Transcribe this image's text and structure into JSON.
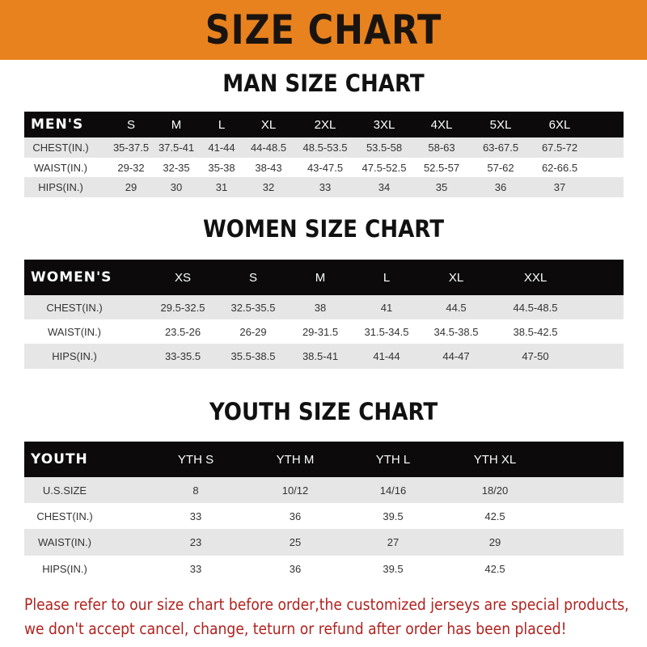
{
  "banner": {
    "title": "SIZE CHART",
    "color": "#E8821E"
  },
  "tables": [
    {
      "title": "MAN SIZE CHART",
      "headers": [
        "MEN'S",
        "S",
        "M",
        "L",
        "XL",
        "2XL",
        "3XL",
        "4XL",
        "5XL",
        "6XL"
      ],
      "rows": [
        [
          "CHEST(IN.)",
          "35-37.5",
          "37.5-41",
          "41-44",
          "44-48.5",
          "48.5-53.5",
          "53.5-58",
          "58-63",
          "63-67.5",
          "67.5-72"
        ],
        [
          "WAISТ(IN.)",
          "29-32",
          "32-35",
          "35-38",
          "38-43",
          "43-47.5",
          "47.5-52.5",
          "52.5-57",
          "57-62",
          "62-66.5"
        ],
        [
          "HIPS(IN.)",
          "29",
          "30",
          "31",
          "32",
          "33",
          "34",
          "35",
          "36",
          "37"
        ]
      ]
    },
    {
      "title": "WOMEN SIZE CHART",
      "headers": [
        "WOMEN'S",
        "XS",
        "S",
        "M",
        "L",
        "XL",
        "XXL"
      ],
      "rows": [
        [
          "CHEST(IN.)",
          "29.5-32.5",
          "32.5-35.5",
          "38",
          "41",
          "44.5",
          "44.5-48.5"
        ],
        [
          "WAIST(IN.)",
          "23.5-26",
          "26-29",
          "29-31.5",
          "31.5-34.5",
          "34.5-38.5",
          "38.5-42.5"
        ],
        [
          "HIPS(IN.)",
          "33-35.5",
          "35.5-38.5",
          "38.5-41",
          "41-44",
          "44-47",
          "47-50"
        ]
      ]
    },
    {
      "title": "YOUTH SIZE CHART",
      "headers": [
        "YOUTH",
        "YTH S",
        "YTH M",
        "YTH L",
        "YTH XL"
      ],
      "rows": [
        [
          "U.S.SIZE",
          "8",
          "10/12",
          "14/16",
          "18/20"
        ],
        [
          "CHEST(IN.)",
          "33",
          "36",
          "39.5",
          "42.5"
        ],
        [
          "WAIST(IN.)",
          "23",
          "25",
          "27",
          "29"
        ],
        [
          "HIPS(IN.)",
          "33",
          "36",
          "39.5",
          "42.5"
        ]
      ]
    }
  ],
  "note": {
    "line1": "Please refer to our size chart before order,the customized jerseys are special products,",
    "line2": "we don't accept cancel, change, teturn or refund after order has been placed!",
    "color": "#b0221f"
  }
}
